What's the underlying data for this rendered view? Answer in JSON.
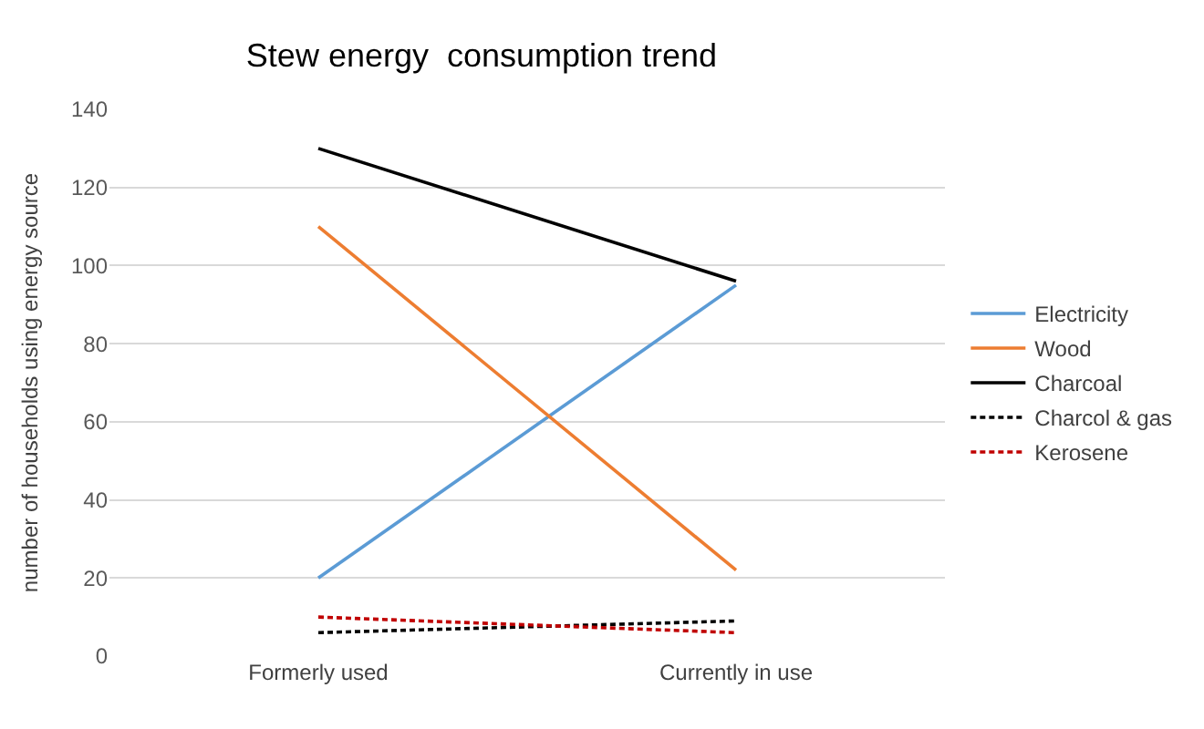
{
  "chart_data": {
    "type": "line",
    "title": "Stew energy  consumption trend",
    "ylabel": "number of households using energy source",
    "categories": [
      "Formerly used",
      "Currently in use"
    ],
    "series": [
      {
        "name": "Electricity",
        "color": "#5b9bd5",
        "values": [
          20,
          95
        ]
      },
      {
        "name": "Wood",
        "color": "#ed7d31",
        "values": [
          110,
          22
        ]
      },
      {
        "name": "Charcoal",
        "color": "#000000",
        "values": [
          130,
          96
        ]
      },
      {
        "name": "Charcol & gas",
        "color": "#000000",
        "values": [
          6,
          9
        ],
        "line_style": "dashed"
      },
      {
        "name": "Kerosene",
        "color": "#c00000",
        "values": [
          10,
          6
        ],
        "line_style": "dashed"
      }
    ],
    "ylim": [
      0,
      140
    ],
    "yticks": [
      0,
      20,
      40,
      60,
      80,
      100,
      120,
      140
    ],
    "grid": "y",
    "legend": "right",
    "marker": "none"
  }
}
